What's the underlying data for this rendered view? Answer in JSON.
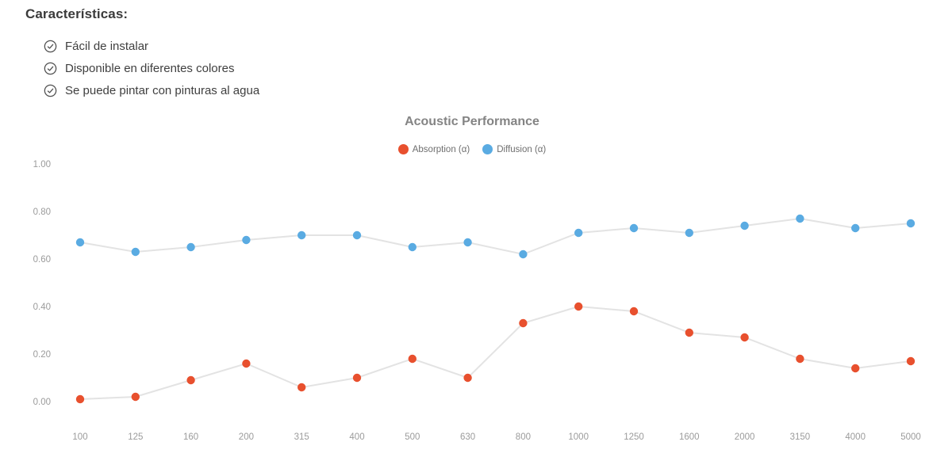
{
  "page": {
    "heading": "Características:",
    "features": [
      {
        "icon": "check-circle-icon",
        "label": "Fácil de instalar"
      },
      {
        "icon": "check-circle-icon",
        "label": "Disponible en diferentes colores"
      },
      {
        "icon": "check-circle-icon",
        "label": "Se puede pintar con pinturas al agua"
      }
    ],
    "text_color": "#3f3f3f",
    "icon_color": "#4f4f4f"
  },
  "chart_data": {
    "type": "line",
    "title": "Acoustic Performance",
    "xlabel": "",
    "ylabel": "",
    "categories": [
      "100",
      "125",
      "160",
      "200",
      "315",
      "400",
      "500",
      "630",
      "800",
      "1000",
      "1250",
      "1600",
      "2000",
      "3150",
      "4000",
      "5000"
    ],
    "yticks": [
      "0.00",
      "0.20",
      "0.40",
      "0.60",
      "0.80",
      "1.00"
    ],
    "ylim": [
      0,
      1.0
    ],
    "grid": false,
    "legend_position": "top",
    "series": [
      {
        "name": "Absorption (α)",
        "color": "#e8502e",
        "values": [
          0.01,
          0.02,
          0.09,
          0.16,
          0.06,
          0.1,
          0.18,
          0.1,
          0.33,
          0.4,
          0.38,
          0.29,
          0.27,
          0.18,
          0.14,
          0.17
        ]
      },
      {
        "name": "Diffusion (α)",
        "color": "#5aabe2",
        "values": [
          0.67,
          0.63,
          0.65,
          0.68,
          0.7,
          0.7,
          0.65,
          0.67,
          0.62,
          0.71,
          0.73,
          0.71,
          0.74,
          0.77,
          0.73,
          0.75
        ]
      }
    ],
    "line_color": "#e3e3e3",
    "axis_text_color": "#9b9b9b",
    "title_color": "#848484",
    "legend_text_color": "#6e6e6e"
  }
}
